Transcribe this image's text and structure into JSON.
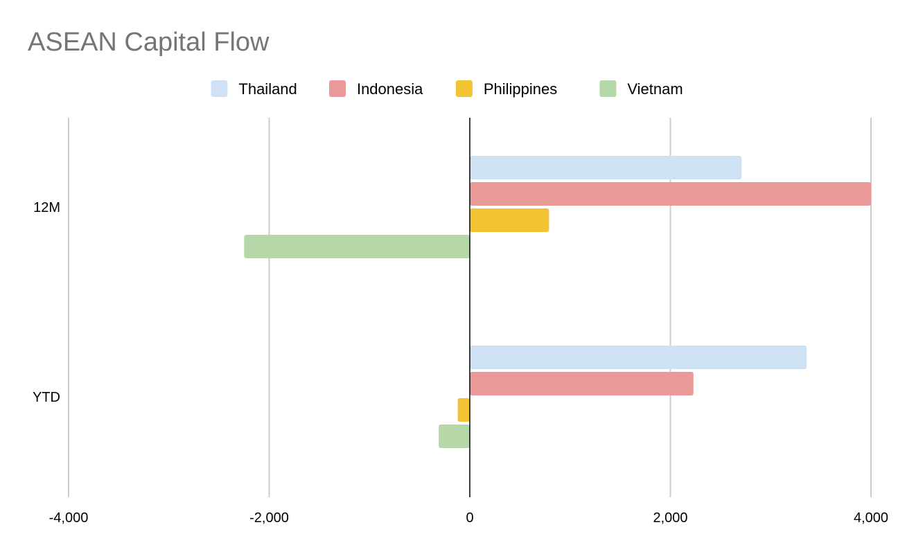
{
  "chart_data": {
    "type": "bar",
    "orientation": "horizontal",
    "title": "ASEAN Capital Flow",
    "xlabel": "",
    "ylabel": "",
    "categories": [
      "12M",
      "YTD"
    ],
    "series": [
      {
        "name": "Thailand",
        "color": "#cfe2f3",
        "values": [
          2710,
          3360
        ]
      },
      {
        "name": "Indonesia",
        "color": "#ea9999",
        "values": [
          4000,
          2230
        ]
      },
      {
        "name": "Philippines",
        "color": "#f1c232",
        "values": [
          790,
          -120
        ]
      },
      {
        "name": "Vietnam",
        "color": "#b6d7a8",
        "values": [
          -2250,
          -310
        ]
      }
    ],
    "xlim": [
      -4000,
      4000
    ],
    "xticks": [
      -4000,
      -2000,
      0,
      2000,
      4000
    ],
    "xtick_labels": [
      "-4,000",
      "-2,000",
      "0",
      "2,000",
      "4,000"
    ],
    "grid": true,
    "legend_position": "top"
  }
}
